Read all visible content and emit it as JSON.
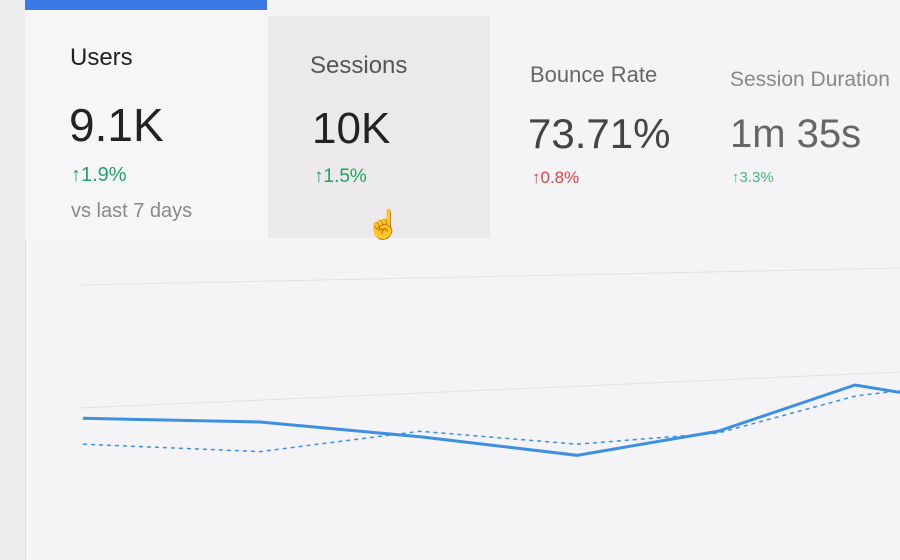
{
  "metrics": [
    {
      "label": "Users",
      "value": "9.1K",
      "delta": "1.9%",
      "trend": "up",
      "note": "vs last 7 days",
      "selected": true
    },
    {
      "label": "Sessions",
      "value": "10K",
      "delta": "1.5%",
      "trend": "up"
    },
    {
      "label": "Bounce Rate",
      "value": "73.71%",
      "delta": "0.8%",
      "trend": "up-bad"
    },
    {
      "label": "Session Duration",
      "value": "1m 35s",
      "delta": "3.3%",
      "trend": "up"
    }
  ],
  "colors": {
    "accent": "#3b78e7",
    "positive": "#1fa463",
    "negative": "#e8404a",
    "line": "#3d8fe0"
  },
  "icons": {
    "arrow": "arrow-up-icon",
    "cursor": "hand-pointer-icon"
  },
  "chart_data": {
    "type": "line",
    "x": [
      0,
      1,
      2,
      3,
      4,
      5,
      6
    ],
    "series": [
      {
        "style": "solid",
        "values": [
          62,
          60,
          52,
          42,
          55,
          80,
          76
        ]
      },
      {
        "style": "dashed",
        "values": [
          48,
          44,
          55,
          48,
          54,
          74,
          77
        ]
      }
    ],
    "ylim": [
      0,
      100
    ],
    "grid": true
  }
}
